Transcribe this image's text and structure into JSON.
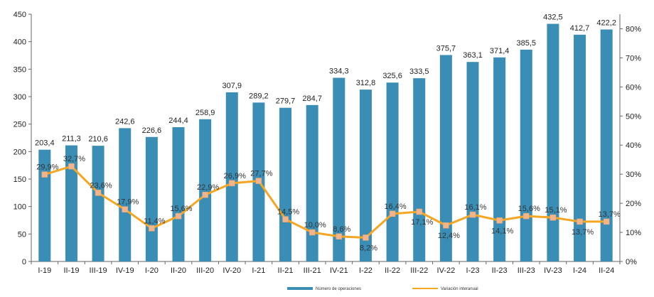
{
  "chart_data": {
    "type": "bar",
    "categories": [
      "I-19",
      "II-19",
      "III-19",
      "IV-19",
      "I-20",
      "II-20",
      "III-20",
      "IV-20",
      "I-21",
      "II-21",
      "III-21",
      "IV-21",
      "I-22",
      "II-22",
      "III-22",
      "IV-22",
      "I-23",
      "II-23",
      "III-23",
      "IV-23",
      "I-24",
      "II-24"
    ],
    "series": [
      {
        "name": "Número de operaciones",
        "type": "bar",
        "axis": "left",
        "color": "#3A8DB5",
        "values": [
          203.4,
          211.3,
          210.6,
          242.6,
          226.6,
          244.4,
          258.9,
          307.9,
          289.2,
          279.7,
          284.7,
          334.3,
          312.8,
          325.6,
          333.5,
          375.7,
          363.1,
          371.4,
          385.5,
          432.5,
          412.7,
          422.2
        ],
        "labels": [
          "203,4",
          "211,3",
          "210,6",
          "242,6",
          "226,6",
          "244,4",
          "258,9",
          "307,9",
          "289,2",
          "279,7",
          "284,7",
          "334,3",
          "312,8",
          "325,6",
          "333,5",
          "375,7",
          "363,1",
          "371,4",
          "385,5",
          "432,5",
          "412,7",
          "422,2"
        ]
      },
      {
        "name": "Variación interanual",
        "type": "line",
        "axis": "right",
        "color": "#F5A623",
        "marker_color": "#F2B48A",
        "values": [
          29.9,
          32.7,
          23.6,
          17.9,
          11.4,
          15.6,
          22.9,
          26.9,
          27.7,
          14.5,
          10.0,
          8.6,
          8.2,
          16.4,
          17.1,
          12.4,
          16.1,
          14.1,
          15.6,
          15.1,
          13.7,
          13.7
        ],
        "labels": [
          "29,9%",
          "32,7%",
          "23,6%",
          "17,9%",
          "11,4%",
          "15,6%",
          "22,9%",
          "26,9%",
          "27,7%",
          "14,5%",
          "10,0%",
          "8,6%",
          "8,2%",
          "16,4%",
          "17,1%",
          "12,4%",
          "16,1%",
          "14,1%",
          "15,6%",
          "15,1%",
          "13,7%",
          "13,7%"
        ]
      }
    ],
    "y_left": {
      "min": 0,
      "max": 450,
      "step": 50,
      "ticks": [
        "0",
        "50",
        "100",
        "150",
        "200",
        "250",
        "300",
        "350",
        "400",
        "450"
      ]
    },
    "y_right": {
      "min": 0,
      "max": 85,
      "step": 10,
      "ticks": [
        "0%",
        "10%",
        "20%",
        "30%",
        "40%",
        "50%",
        "60%",
        "70%",
        "80%"
      ]
    },
    "legend": {
      "position": "bottom",
      "items": [
        "Número de operaciones",
        "Variación interanual"
      ]
    },
    "grid": false
  }
}
